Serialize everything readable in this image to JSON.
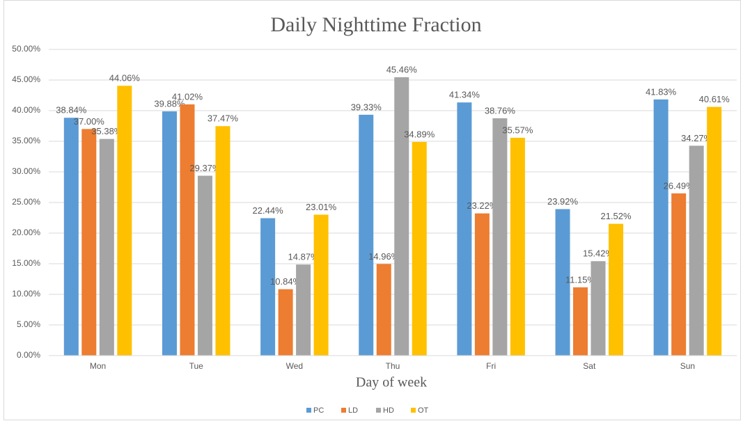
{
  "chart_data": {
    "type": "bar",
    "title": "Daily Nighttime Fraction",
    "x_label": "Day of week",
    "categories": [
      "Mon",
      "Tue",
      "Wed",
      "Thu",
      "Fri",
      "Sat",
      "Sun"
    ],
    "series": [
      {
        "name": "PC",
        "color": "#5b9bd5",
        "values": [
          38.84,
          39.88,
          22.44,
          39.33,
          41.34,
          23.92,
          41.83
        ],
        "value_labels": [
          "38.84%",
          "39.88%",
          "22.44%",
          "39.33%",
          "41.34%",
          "23.92%",
          "41.83%"
        ]
      },
      {
        "name": "LD",
        "color": "#ed7d31",
        "values": [
          37.0,
          41.02,
          10.84,
          14.96,
          23.22,
          11.15,
          26.49
        ],
        "value_labels": [
          "37.00%",
          "41.02%",
          "10.84%",
          "14.96%",
          "23.22%",
          "11.15%",
          "26.49%"
        ]
      },
      {
        "name": "HD",
        "color": "#a5a5a5",
        "values": [
          35.38,
          29.37,
          14.87,
          45.46,
          38.76,
          15.42,
          34.27
        ],
        "value_labels": [
          "35.38%",
          "29.37%",
          "14.87%",
          "45.46%",
          "38.76%",
          "15.42%",
          "34.27%"
        ]
      },
      {
        "name": "OT",
        "color": "#ffc000",
        "values": [
          44.06,
          37.47,
          23.01,
          34.89,
          35.57,
          21.52,
          40.61
        ],
        "value_labels": [
          "44.06%",
          "37.47%",
          "23.01%",
          "34.89%",
          "35.57%",
          "21.52%",
          "40.61%"
        ]
      }
    ],
    "ylim": [
      0,
      50
    ],
    "yticks": [
      {
        "value": 0,
        "label": "0.00%"
      },
      {
        "value": 5,
        "label": "5.00%"
      },
      {
        "value": 10,
        "label": "10.00%"
      },
      {
        "value": 15,
        "label": "15.00%"
      },
      {
        "value": 20,
        "label": "20.00%"
      },
      {
        "value": 25,
        "label": "25.00%"
      },
      {
        "value": 30,
        "label": "30.00%"
      },
      {
        "value": 35,
        "label": "35.00%"
      },
      {
        "value": 40,
        "label": "40.00%"
      },
      {
        "value": 45,
        "label": "45.00%"
      },
      {
        "value": 50,
        "label": "50.00%"
      }
    ],
    "grid": true,
    "legend": "bottom"
  }
}
